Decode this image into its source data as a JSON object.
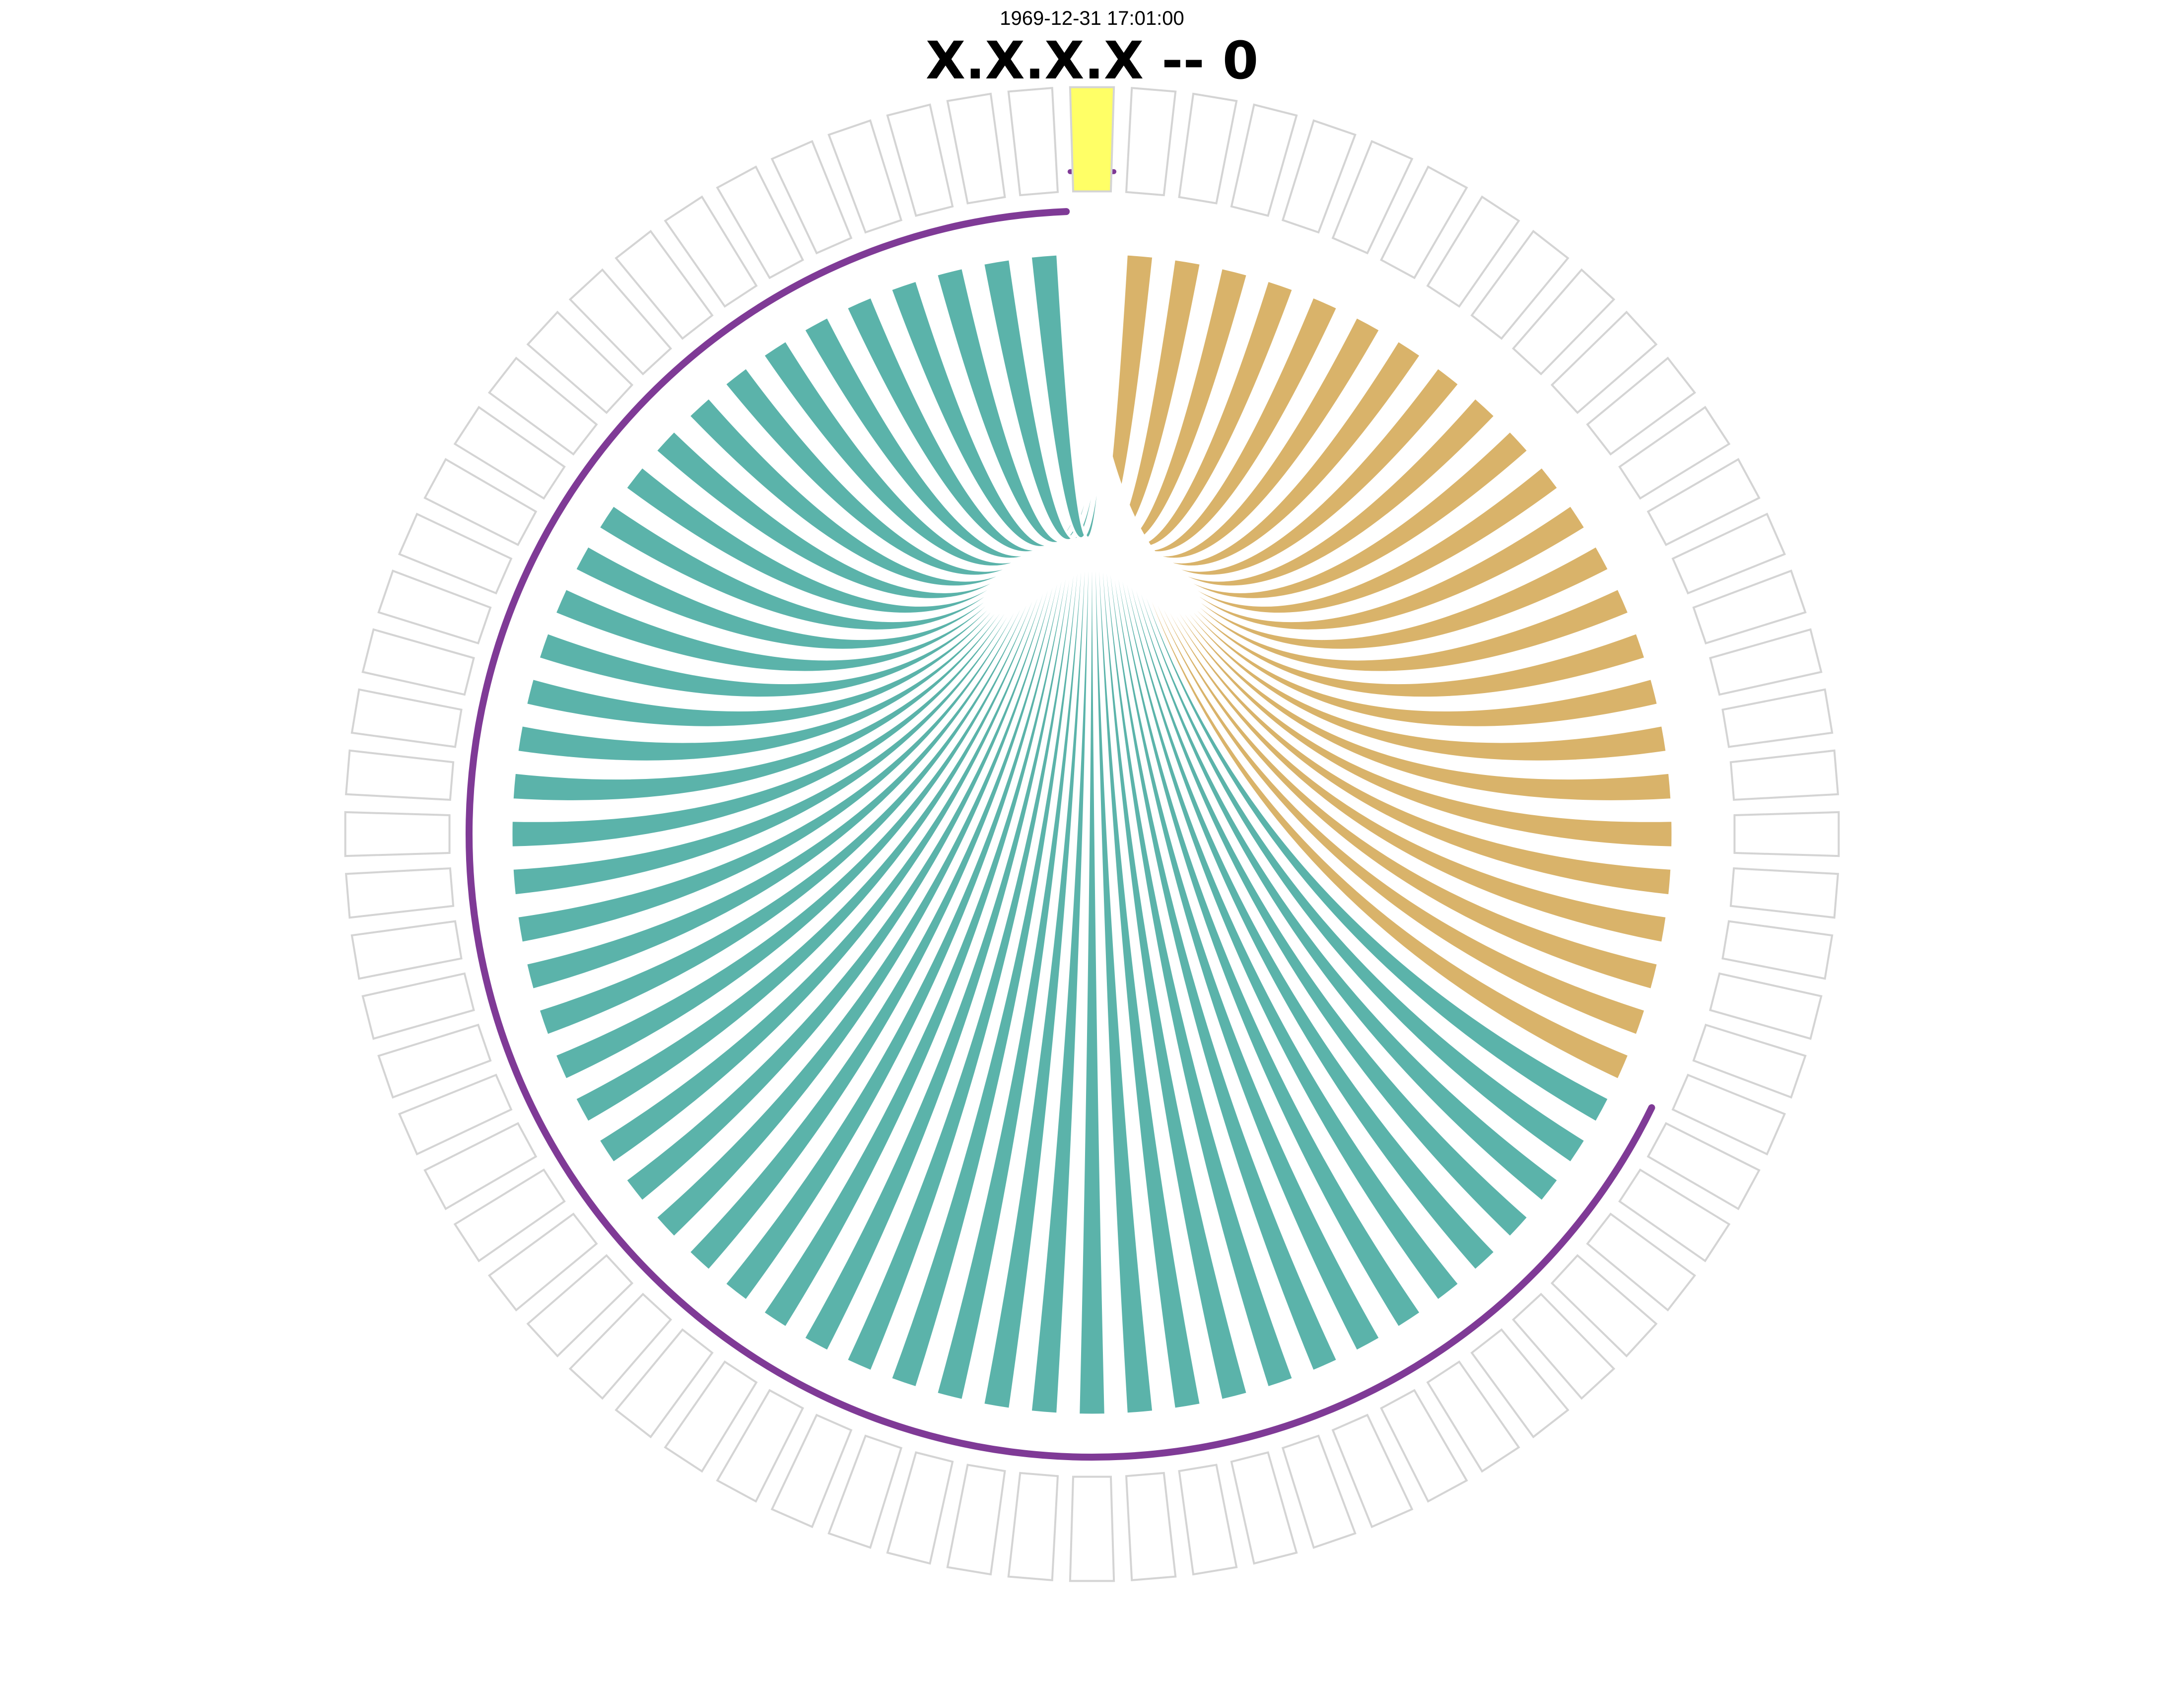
{
  "header": {
    "timestamp": "1969-12-31 17:01:00",
    "title": "X.X.X.X -- 0"
  },
  "chart_data": {
    "type": "chord",
    "segment_count": 76,
    "highlighted_segment": 0,
    "outer_ring": {
      "highlight_color": "#FFFF66",
      "empty_fill": "#FFFFFF",
      "outline_color": "#D4D4D4"
    },
    "flows": [
      {
        "name": "",
        "color": "#D9B36A",
        "segments_from": 1,
        "segments_to": 24
      },
      {
        "name": "",
        "color": "#5BB3AA",
        "segments_from": 25,
        "segments_to": 75
      }
    ],
    "purple_track": {
      "color": "#7F3A96",
      "arc_from_segment": 25,
      "arc_to_segment": 75
    }
  }
}
